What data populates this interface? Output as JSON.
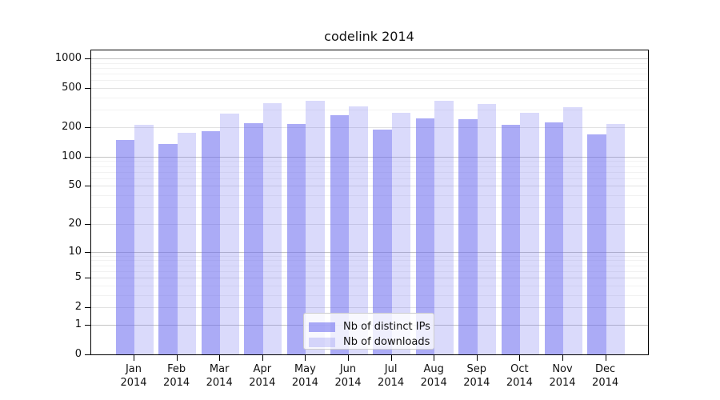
{
  "chart_data": {
    "type": "bar",
    "title": "codelink 2014",
    "categories": [
      "Jan",
      "Feb",
      "Mar",
      "Apr",
      "May",
      "Jun",
      "Jul",
      "Aug",
      "Sep",
      "Oct",
      "Nov",
      "Dec"
    ],
    "category_year": "2014",
    "series": [
      {
        "name": "Nb of distinct IPs",
        "color": "rgba(102,102,238,0.55)",
        "values": [
          149,
          135,
          183,
          221,
          216,
          265,
          190,
          245,
          240,
          213,
          224,
          170
        ]
      },
      {
        "name": "Nb of downloads",
        "color": "rgba(102,102,238,0.24)",
        "values": [
          213,
          176,
          275,
          350,
          374,
          328,
          280,
          370,
          342,
          283,
          320,
          214
        ]
      }
    ],
    "yscale": "log10(1+y)",
    "ytick_values": [
      0,
      1,
      2,
      5,
      10,
      20,
      50,
      100,
      200,
      500,
      1000
    ],
    "ytick_labels": [
      "0",
      "1",
      "2",
      "5",
      "10",
      "20",
      "50",
      "100",
      "200",
      "500",
      "1000"
    ],
    "ylim": [
      0,
      1230
    ],
    "grid": true,
    "legend_position": "bottom-center"
  },
  "colors": {
    "bar_base": "#6666ee",
    "grid_major": "#c3c3c3",
    "grid_sub": "#e2e2e2",
    "grid_minor": "#f2f2f2",
    "spine": "#000000",
    "text": "#111111",
    "legend_border": "#cccccc",
    "legend_bg": "rgba(255,255,255,0.8)"
  }
}
